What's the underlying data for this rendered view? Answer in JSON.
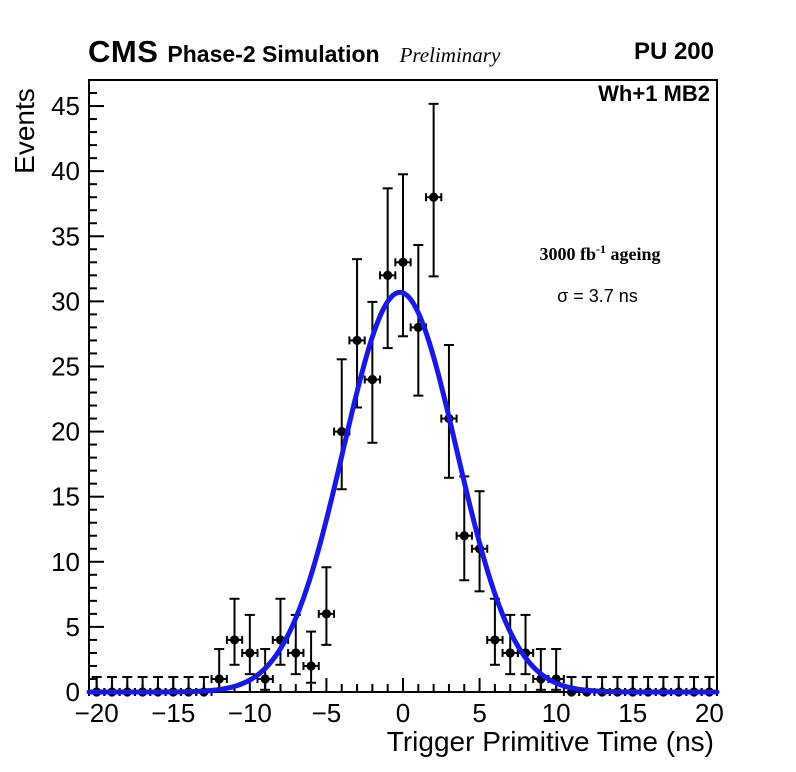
{
  "header": {
    "experiment": "CMS",
    "label": "Phase-2 Simulation",
    "status": "Preliminary",
    "right_label": "PU 200"
  },
  "plot": {
    "region_label": "Wh+1 MB2",
    "lumi_prefix": "3000 fb",
    "lumi_sup": "-1",
    "lumi_suffix": " ageing",
    "sigma_label": "σ = 3.7 ns"
  },
  "chart_data": {
    "type": "scatter",
    "subtype": "histogram-points-with-gaussian-fit",
    "title": "",
    "xlabel": "Trigger Primitive Time (ns)",
    "ylabel": "Events",
    "xlim": [
      -20.5,
      20.5
    ],
    "ylim": [
      0,
      47
    ],
    "x_major_ticks": [
      -20,
      -15,
      -10,
      -5,
      0,
      5,
      10,
      15,
      20
    ],
    "x_minor_step": 1,
    "y_major_ticks": [
      0,
      5,
      10,
      15,
      20,
      25,
      30,
      35,
      40,
      45
    ],
    "y_minor_step": 1,
    "bin_half_width": 0.5,
    "error_model": "poisson-garwood-68pct",
    "points": [
      [
        -20,
        0,
        0,
        1.15
      ],
      [
        -19,
        0,
        0,
        1.15
      ],
      [
        -18,
        0,
        0,
        1.15
      ],
      [
        -17,
        0,
        0,
        1.15
      ],
      [
        -16,
        0,
        0,
        1.15
      ],
      [
        -15,
        0,
        0,
        1.15
      ],
      [
        -14,
        0,
        0,
        1.15
      ],
      [
        -13,
        0,
        0,
        1.15
      ],
      [
        -12,
        1,
        0.83,
        2.3
      ],
      [
        -11,
        4,
        1.91,
        3.16
      ],
      [
        -10,
        3,
        1.63,
        2.92
      ],
      [
        -9,
        1,
        0.83,
        2.3
      ],
      [
        -8,
        4,
        1.91,
        3.16
      ],
      [
        -7,
        3,
        1.63,
        2.92
      ],
      [
        -6,
        2,
        1.29,
        2.64
      ],
      [
        -5,
        6,
        2.38,
        3.58
      ],
      [
        -4,
        20,
        4.43,
        5.55
      ],
      [
        -3,
        27,
        5.15,
        6.24
      ],
      [
        -2,
        24,
        4.86,
        5.96
      ],
      [
        -1,
        32,
        5.59,
        6.68
      ],
      [
        0,
        33,
        5.68,
        6.76
      ],
      [
        1,
        28,
        5.24,
        6.33
      ],
      [
        2,
        38,
        6.08,
        7.17
      ],
      [
        3,
        21,
        4.55,
        5.65
      ],
      [
        4,
        12,
        3.42,
        4.56
      ],
      [
        5,
        11,
        3.27,
        4.42
      ],
      [
        6,
        4,
        1.91,
        3.16
      ],
      [
        7,
        3,
        1.63,
        2.92
      ],
      [
        8,
        3,
        1.63,
        2.92
      ],
      [
        9,
        1,
        0.83,
        2.3
      ],
      [
        10,
        1,
        0.83,
        2.3
      ],
      [
        11,
        0,
        0,
        1.15
      ],
      [
        12,
        0,
        0,
        1.15
      ],
      [
        13,
        0,
        0,
        1.15
      ],
      [
        14,
        0,
        0,
        1.15
      ],
      [
        15,
        0,
        0,
        1.15
      ],
      [
        16,
        0,
        0,
        1.15
      ],
      [
        17,
        0,
        0,
        1.15
      ],
      [
        18,
        0,
        0,
        1.15
      ],
      [
        19,
        0,
        0,
        1.15
      ],
      [
        20,
        0,
        0,
        1.15
      ]
    ],
    "fit": {
      "shape": "gaussian",
      "amplitude": 30.7,
      "mean": -0.2,
      "sigma_ns": 3.7
    },
    "grid": false,
    "legend_position": "none",
    "colors": {
      "marker": "#000000",
      "fit_line": "#1919e6",
      "axis": "#000000",
      "background": "#ffffff"
    }
  }
}
